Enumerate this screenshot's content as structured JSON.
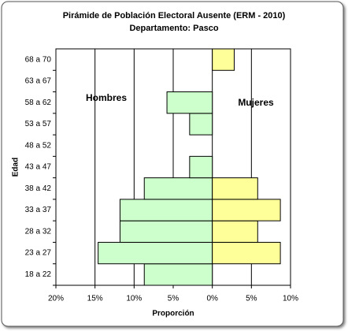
{
  "chart_data": {
    "type": "pyramid",
    "title": "Pirámide de Población  Electoral Ausente (ERM - 2010)",
    "subtitle": "Departamento: Pasco",
    "x_label": "Proporción",
    "y_label": "Edad",
    "annotations": [
      "Hombres",
      "Mujeres"
    ],
    "categories": [
      "18 a 22",
      "23 a 27",
      "28 a 32",
      "33 a 37",
      "38 a 42",
      "43 a 47",
      "48 a 52",
      "53 a 57",
      "58 a 62",
      "63 a 67",
      "68 a 70"
    ],
    "series": [
      {
        "name": "Hombres",
        "color": "#ccffcc",
        "values": [
          -8.7,
          -14.6,
          -11.8,
          -11.8,
          -8.7,
          -2.9,
          0,
          -2.9,
          -5.8,
          0,
          0
        ]
      },
      {
        "name": "Mujeres",
        "color": "#ffff99",
        "values": [
          0,
          8.7,
          5.8,
          8.7,
          5.8,
          0,
          0,
          0,
          0,
          0,
          2.8
        ]
      }
    ],
    "xlim": [
      -20,
      10
    ],
    "xticks": [
      {
        "value": -20,
        "label": "20%"
      },
      {
        "value": -15,
        "label": "15%"
      },
      {
        "value": -10,
        "label": "10%"
      },
      {
        "value": -5,
        "label": "5%"
      },
      {
        "value": 0,
        "label": "0%"
      },
      {
        "value": 5,
        "label": "5%"
      },
      {
        "value": 10,
        "label": "10%"
      }
    ],
    "grid": true
  }
}
